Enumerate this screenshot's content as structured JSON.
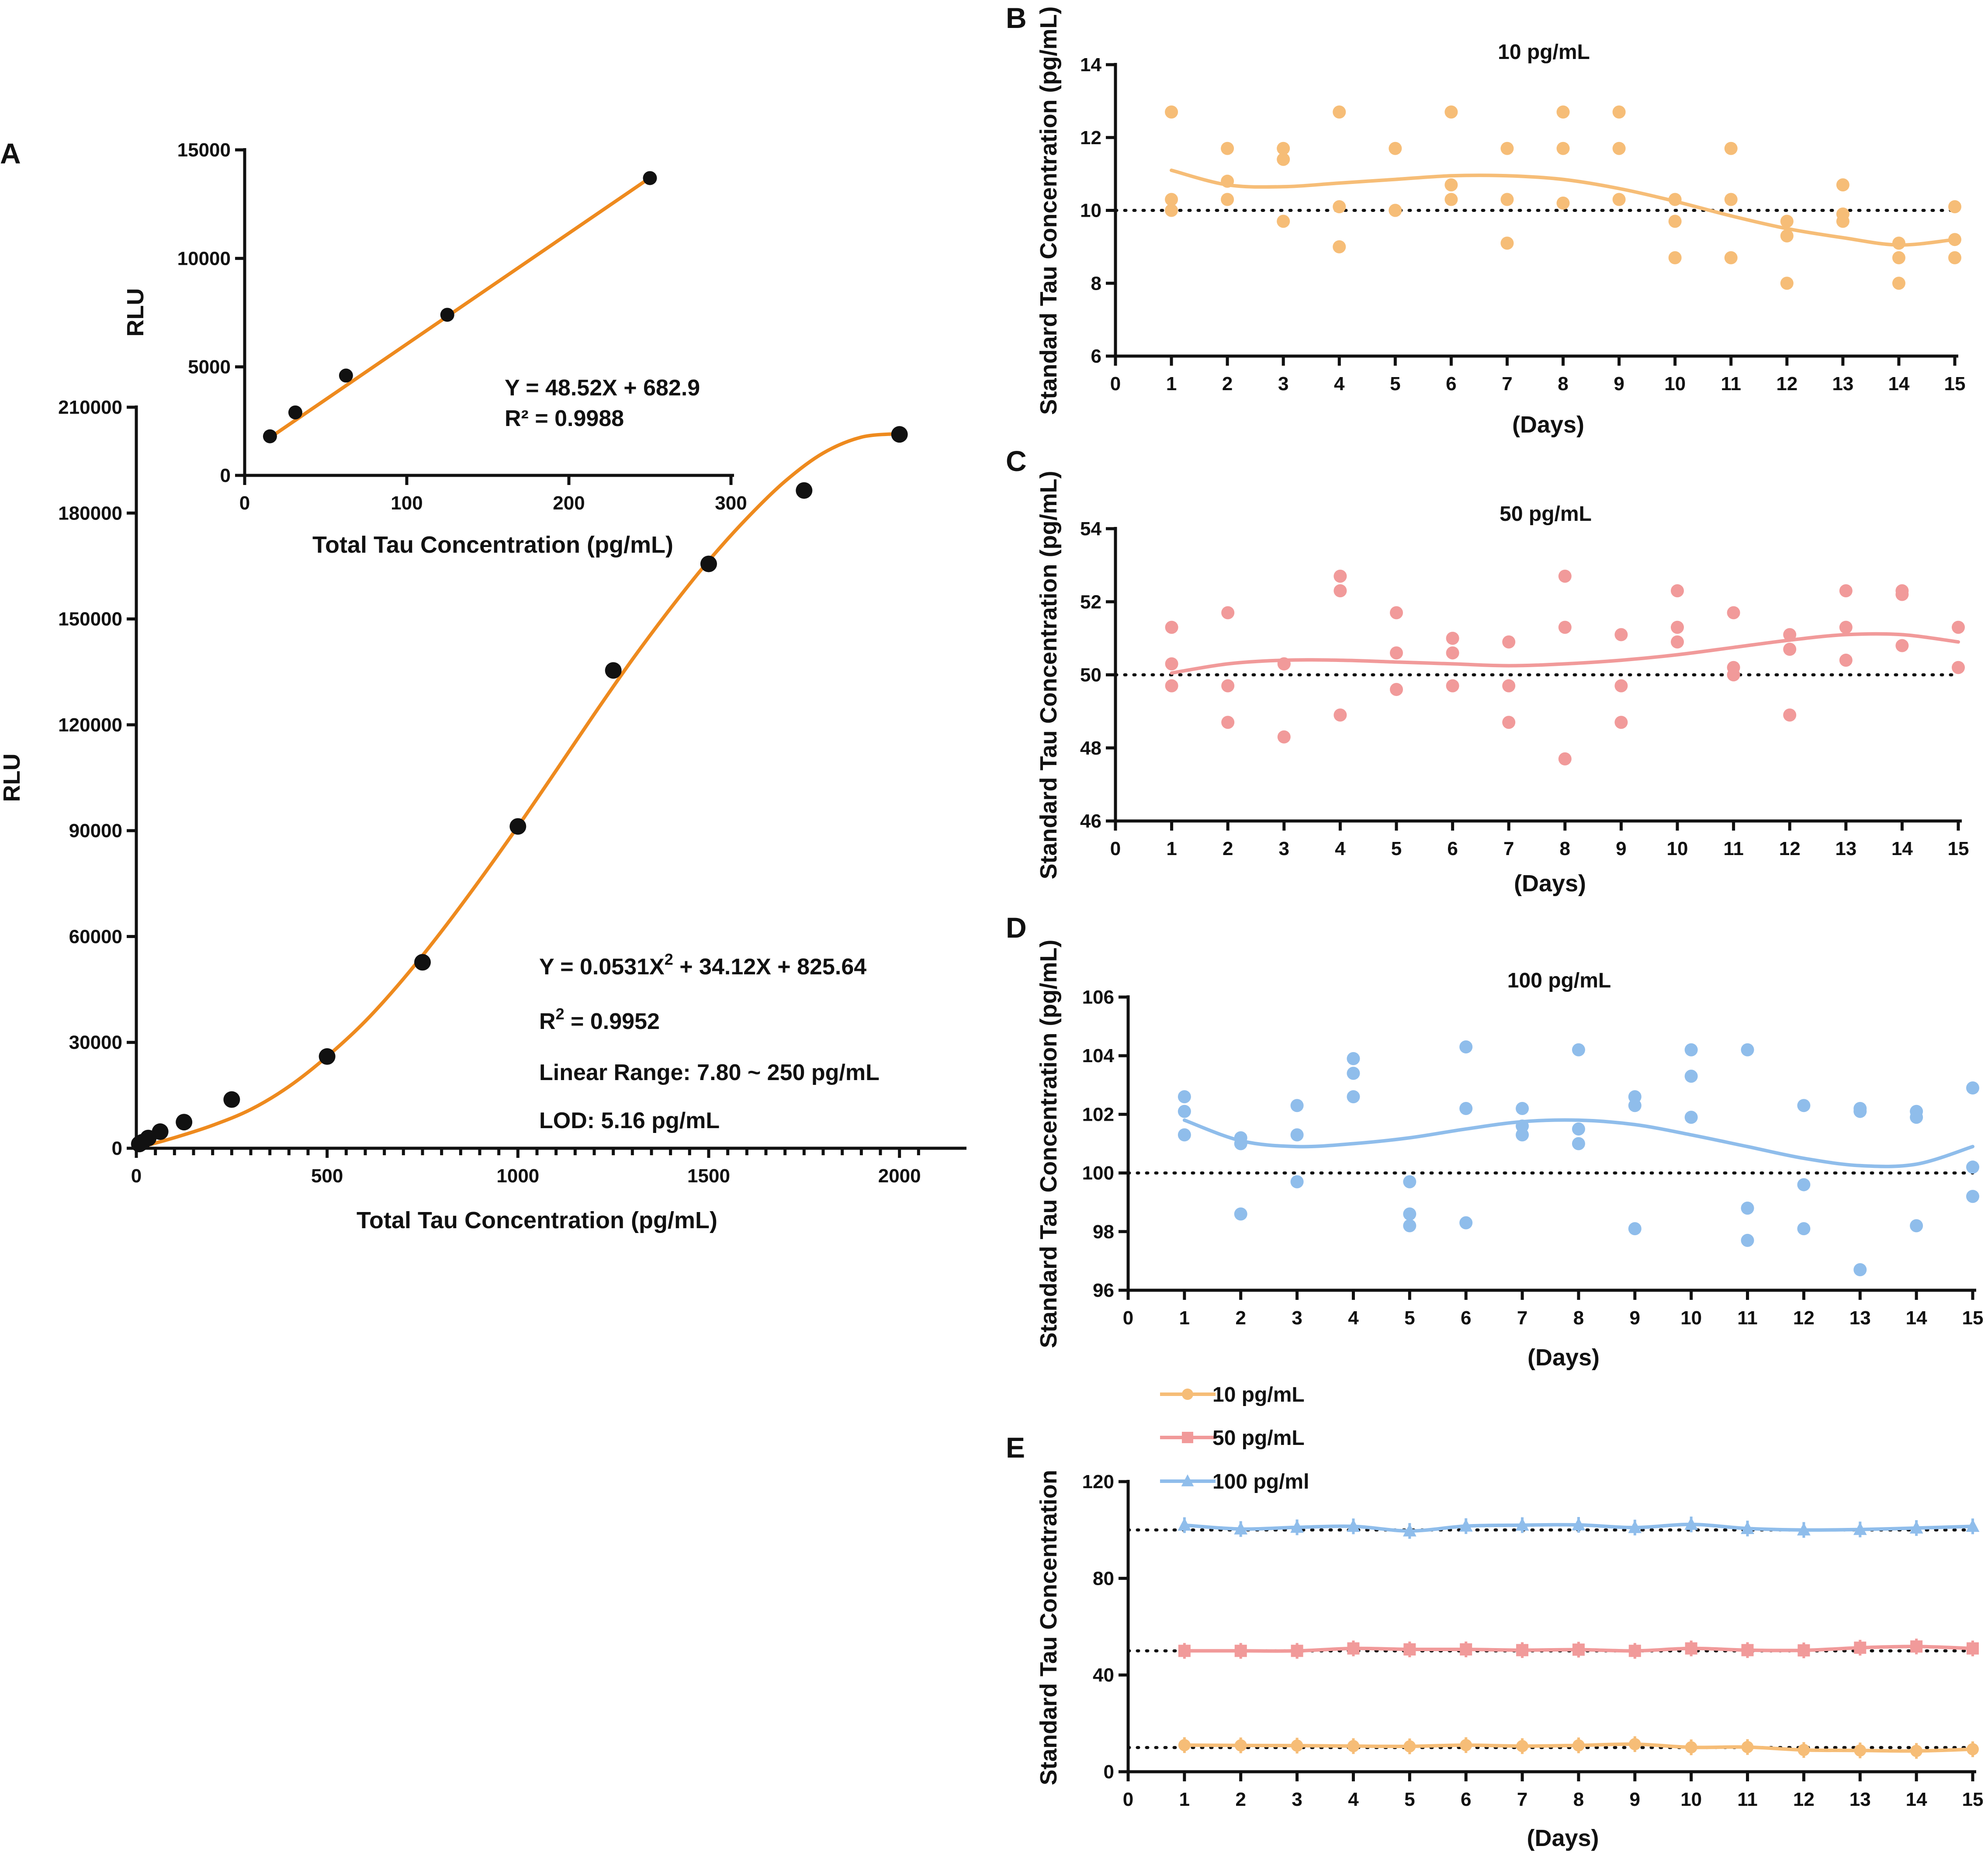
{
  "colors": {
    "orange": "#ee8a1e",
    "c10": "#f6bd77",
    "c50": "#f19a9a",
    "c100": "#8fbdeb",
    "black": "#111111"
  },
  "chart_data": [
    {
      "id": "A",
      "type": "scatter",
      "letter": "A",
      "xlabel": "Total Tau Concentration (pg/mL)",
      "ylabel": "RLU",
      "xlim": [
        0,
        2100
      ],
      "ylim": [
        0,
        210000
      ],
      "xticks": [
        0,
        500,
        1000,
        1500,
        2000
      ],
      "yticks": [
        0,
        30000,
        60000,
        90000,
        120000,
        150000,
        180000,
        210000
      ],
      "minor_x_step": 50,
      "x": [
        7.8,
        15.6,
        31.25,
        62.5,
        125,
        250,
        500,
        750,
        1000,
        1250,
        1500,
        1750,
        2000
      ],
      "y": [
        1200,
        1700,
        2900,
        4700,
        7400,
        13800,
        26000,
        52700,
        91200,
        135400,
        165600,
        186400,
        202300
      ],
      "fit_x": [
        0,
        100,
        200,
        300,
        400,
        500,
        600,
        700,
        800,
        900,
        1000,
        1100,
        1200,
        1300,
        1400,
        1500,
        1600,
        1700,
        1800,
        1900,
        2000
      ],
      "fit_y": [
        0,
        3000,
        6500,
        11000,
        17500,
        26000,
        36000,
        48000,
        61500,
        76000,
        91200,
        107000,
        123000,
        138500,
        153000,
        166500,
        178500,
        189000,
        197000,
        201500,
        202500
      ],
      "annotations": [
        {
          "pre": "Y = 0.0531X",
          "sup": "2",
          "post": " + 34.12X + 825.64"
        },
        {
          "pre": "R",
          "sup": "2",
          "post": " = 0.9952"
        },
        {
          "pre": "Linear Range: 7.80 ~ 250 pg/mL",
          "sup": "",
          "post": ""
        },
        {
          "pre": "LOD: 5.16 pg/mL",
          "sup": "",
          "post": ""
        }
      ]
    },
    {
      "id": "A-inset",
      "type": "scatter",
      "xlabel": "Total Tau Concentration (pg/mL)",
      "ylabel": "RLU",
      "xlim": [
        0,
        300
      ],
      "ylim": [
        0,
        15000
      ],
      "xticks": [
        0,
        100,
        200,
        300
      ],
      "yticks": [
        0,
        5000,
        10000,
        15000
      ],
      "x": [
        15.6,
        31.25,
        62.5,
        125,
        250
      ],
      "y": [
        1800,
        2900,
        4600,
        7400,
        13700
      ],
      "fit": {
        "slope": 48.52,
        "intercept": 682.9
      },
      "annotations": [
        "Y = 48.52X + 682.9",
        "R² = 0.9988"
      ]
    },
    {
      "id": "B",
      "type": "scatter",
      "letter": "B",
      "title": "10 pg/mL",
      "xlabel": "(Days)",
      "ylabel": "Standard Tau Concentration (pg/mL)",
      "xlim": [
        0,
        15
      ],
      "ylim": [
        6,
        14
      ],
      "xticks": [
        0,
        1,
        2,
        3,
        4,
        5,
        6,
        7,
        8,
        9,
        10,
        11,
        12,
        13,
        14,
        15
      ],
      "yticks": [
        6,
        8,
        10,
        12,
        14
      ],
      "reference": 10,
      "points": [
        [
          1,
          12.7
        ],
        [
          1,
          10.3
        ],
        [
          1,
          10.0
        ],
        [
          2,
          11.7
        ],
        [
          2,
          10.8
        ],
        [
          2,
          10.3
        ],
        [
          3,
          11.7
        ],
        [
          3,
          11.4
        ],
        [
          3,
          9.7
        ],
        [
          4,
          12.7
        ],
        [
          4,
          10.1
        ],
        [
          4,
          9.0
        ],
        [
          5,
          11.7
        ],
        [
          5,
          10.0
        ],
        [
          5,
          10.0
        ],
        [
          6,
          12.7
        ],
        [
          6,
          10.7
        ],
        [
          6,
          10.3
        ],
        [
          7,
          11.7
        ],
        [
          7,
          10.3
        ],
        [
          7,
          9.1
        ],
        [
          8,
          12.7
        ],
        [
          8,
          11.7
        ],
        [
          8,
          10.2
        ],
        [
          9,
          12.7
        ],
        [
          9,
          11.7
        ],
        [
          9,
          10.3
        ],
        [
          10,
          10.3
        ],
        [
          10,
          9.7
        ],
        [
          10,
          8.7
        ],
        [
          11,
          11.7
        ],
        [
          11,
          10.3
        ],
        [
          11,
          8.7
        ],
        [
          12,
          9.7
        ],
        [
          12,
          9.3
        ],
        [
          12,
          8.0
        ],
        [
          13,
          10.7
        ],
        [
          13,
          9.9
        ],
        [
          13,
          9.7
        ],
        [
          14,
          9.1
        ],
        [
          14,
          8.7
        ],
        [
          14,
          8.0
        ],
        [
          15,
          10.1
        ],
        [
          15,
          9.2
        ],
        [
          15,
          8.7
        ]
      ],
      "fit_x": [
        1,
        2,
        3,
        4,
        5,
        6,
        7,
        8,
        9,
        10,
        11,
        12,
        13,
        14,
        15
      ],
      "fit_y": [
        11.1,
        10.7,
        10.65,
        10.75,
        10.85,
        10.95,
        10.95,
        10.85,
        10.6,
        10.25,
        9.85,
        9.5,
        9.25,
        9.05,
        9.2
      ]
    },
    {
      "id": "C",
      "type": "scatter",
      "letter": "C",
      "title": "50 pg/mL",
      "xlabel": "(Days)",
      "ylabel": "Standard Tau Concentration (pg/mL)",
      "xlim": [
        0,
        15
      ],
      "ylim": [
        46,
        54
      ],
      "xticks": [
        0,
        1,
        2,
        3,
        4,
        5,
        6,
        7,
        8,
        9,
        10,
        11,
        12,
        13,
        14,
        15
      ],
      "yticks": [
        46,
        48,
        50,
        52,
        54
      ],
      "reference": 50,
      "points": [
        [
          1,
          51.3
        ],
        [
          1,
          50.3
        ],
        [
          1,
          49.7
        ],
        [
          2,
          51.7
        ],
        [
          2,
          49.7
        ],
        [
          2,
          48.7
        ],
        [
          3,
          50.3
        ],
        [
          3,
          50.3
        ],
        [
          3,
          48.3
        ],
        [
          4,
          52.7
        ],
        [
          4,
          52.3
        ],
        [
          4,
          48.9
        ],
        [
          5,
          51.7
        ],
        [
          5,
          50.6
        ],
        [
          5,
          49.6
        ],
        [
          6,
          51.0
        ],
        [
          6,
          50.6
        ],
        [
          6,
          49.7
        ],
        [
          7,
          50.9
        ],
        [
          7,
          49.7
        ],
        [
          7,
          48.7
        ],
        [
          8,
          52.7
        ],
        [
          8,
          51.3
        ],
        [
          8,
          47.7
        ],
        [
          9,
          51.1
        ],
        [
          9,
          49.7
        ],
        [
          9,
          48.7
        ],
        [
          10,
          52.3
        ],
        [
          10,
          51.3
        ],
        [
          10,
          50.9
        ],
        [
          11,
          51.7
        ],
        [
          11,
          50.2
        ],
        [
          11,
          50.0
        ],
        [
          12,
          51.1
        ],
        [
          12,
          50.7
        ],
        [
          12,
          48.9
        ],
        [
          13,
          52.3
        ],
        [
          13,
          51.3
        ],
        [
          13,
          50.4
        ],
        [
          14,
          52.3
        ],
        [
          14,
          52.2
        ],
        [
          14,
          50.8
        ],
        [
          15,
          51.3
        ],
        [
          15,
          50.2
        ]
      ],
      "fit_x": [
        1,
        2,
        3,
        4,
        5,
        6,
        7,
        8,
        9,
        10,
        11,
        12,
        13,
        14,
        15
      ],
      "fit_y": [
        50.05,
        50.3,
        50.4,
        50.4,
        50.35,
        50.3,
        50.25,
        50.3,
        50.4,
        50.55,
        50.75,
        50.95,
        51.1,
        51.1,
        50.9
      ]
    },
    {
      "id": "D",
      "type": "scatter",
      "letter": "D",
      "title": "100 pg/mL",
      "xlabel": "(Days)",
      "ylabel": "Standard Tau Concentration (pg/mL)",
      "xlim": [
        0,
        15
      ],
      "ylim": [
        96,
        106
      ],
      "xticks": [
        0,
        1,
        2,
        3,
        4,
        5,
        6,
        7,
        8,
        9,
        10,
        11,
        12,
        13,
        14,
        15
      ],
      "yticks": [
        96,
        98,
        100,
        102,
        104,
        106
      ],
      "reference": 100,
      "points": [
        [
          1,
          102.6
        ],
        [
          1,
          102.1
        ],
        [
          1,
          101.3
        ],
        [
          2,
          101.2
        ],
        [
          2,
          101.0
        ],
        [
          2,
          98.6
        ],
        [
          3,
          102.3
        ],
        [
          3,
          101.3
        ],
        [
          3,
          99.7
        ],
        [
          4,
          103.9
        ],
        [
          4,
          103.4
        ],
        [
          4,
          102.6
        ],
        [
          5,
          99.7
        ],
        [
          5,
          98.6
        ],
        [
          5,
          98.2
        ],
        [
          6,
          104.3
        ],
        [
          6,
          102.2
        ],
        [
          6,
          98.3
        ],
        [
          7,
          102.2
        ],
        [
          7,
          101.6
        ],
        [
          7,
          101.3
        ],
        [
          8,
          104.2
        ],
        [
          8,
          101.5
        ],
        [
          8,
          101.0
        ],
        [
          9,
          102.6
        ],
        [
          9,
          102.3
        ],
        [
          9,
          98.1
        ],
        [
          10,
          104.2
        ],
        [
          10,
          103.3
        ],
        [
          10,
          101.9
        ],
        [
          11,
          104.2
        ],
        [
          11,
          98.8
        ],
        [
          11,
          97.7
        ],
        [
          12,
          102.3
        ],
        [
          12,
          99.6
        ],
        [
          12,
          98.1
        ],
        [
          13,
          102.2
        ],
        [
          13,
          102.1
        ],
        [
          13,
          96.7
        ],
        [
          14,
          102.1
        ],
        [
          14,
          101.9
        ],
        [
          14,
          98.2
        ],
        [
          15,
          102.9
        ],
        [
          15,
          100.2
        ],
        [
          15,
          99.2
        ]
      ],
      "fit_x": [
        1,
        2,
        3,
        4,
        5,
        6,
        7,
        8,
        9,
        10,
        11,
        12,
        13,
        14,
        15
      ],
      "fit_y": [
        101.8,
        101.1,
        100.9,
        101.0,
        101.2,
        101.5,
        101.75,
        101.8,
        101.65,
        101.3,
        100.9,
        100.5,
        100.25,
        100.3,
        100.9
      ]
    },
    {
      "id": "E",
      "type": "line",
      "letter": "E",
      "xlabel": "(Days)",
      "ylabel": "Standard Tau Concentration",
      "xlim": [
        0,
        15
      ],
      "ylim": [
        0,
        120
      ],
      "xticks": [
        0,
        1,
        2,
        3,
        4,
        5,
        6,
        7,
        8,
        9,
        10,
        11,
        12,
        13,
        14,
        15
      ],
      "yticks": [
        0,
        40,
        80,
        120
      ],
      "references": [
        10,
        50,
        100
      ],
      "series": [
        {
          "name": "10 pg/mL",
          "marker": "circle",
          "color": "#f6bd77",
          "x": [
            1,
            2,
            3,
            4,
            5,
            6,
            7,
            8,
            9,
            10,
            11,
            12,
            13,
            14,
            15
          ],
          "y": [
            11,
            10.9,
            10.8,
            10.6,
            10.5,
            11,
            10.6,
            10.9,
            11.4,
            10.1,
            10.2,
            9,
            8.8,
            8.6,
            9.3
          ]
        },
        {
          "name": "50 pg/mL",
          "marker": "square",
          "color": "#f19a9a",
          "x": [
            1,
            2,
            3,
            4,
            5,
            6,
            7,
            8,
            9,
            10,
            11,
            12,
            13,
            14,
            15
          ],
          "y": [
            50,
            50,
            50,
            51,
            50.6,
            50.6,
            50.3,
            50.5,
            50,
            51,
            50.3,
            50.2,
            51.3,
            51.8,
            51
          ]
        },
        {
          "name": "100 pg/ml",
          "marker": "triangle",
          "color": "#8fbdeb",
          "x": [
            1,
            2,
            3,
            4,
            5,
            6,
            7,
            8,
            9,
            10,
            11,
            12,
            13,
            14,
            15
          ],
          "y": [
            102,
            100.4,
            101.1,
            101.5,
            99.6,
            101.6,
            102,
            102.1,
            101,
            102.3,
            100.6,
            100,
            100.2,
            100.8,
            101.5
          ]
        }
      ]
    }
  ]
}
